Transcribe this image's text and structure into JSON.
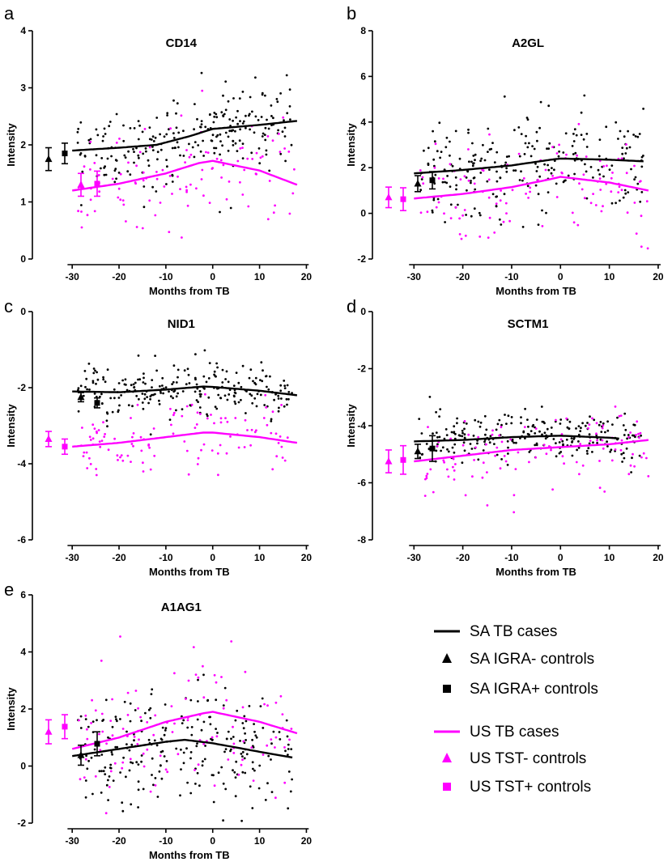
{
  "colors": {
    "sa": "#000000",
    "us": "#ff00ff"
  },
  "legend": {
    "items": [
      {
        "label": "SA TB cases",
        "marker": "line",
        "group": "sa"
      },
      {
        "label": "SA IGRA- controls",
        "marker": "triangle",
        "group": "sa"
      },
      {
        "label": "SA IGRA+ controls",
        "marker": "square",
        "group": "sa"
      },
      {
        "label": "US TB cases",
        "marker": "line",
        "group": "us"
      },
      {
        "label": "US TST- controls",
        "marker": "triangle",
        "group": "us"
      },
      {
        "label": "US TST+ controls",
        "marker": "square",
        "group": "us"
      }
    ]
  },
  "chart_data": [
    {
      "type": "scatter",
      "letter": "a",
      "title": "CD14",
      "xlabel": "Months from TB",
      "ylabel": "Intensity",
      "xlim": [
        -30,
        20
      ],
      "ylim": [
        0,
        4
      ],
      "xticks": [
        -30,
        -20,
        -10,
        0,
        10,
        20
      ],
      "yticks": [
        0,
        1,
        2,
        3,
        4
      ],
      "sa_center": 2.15,
      "sa_spread": 0.35,
      "us_center": 1.55,
      "us_spread": 0.45,
      "series": [
        {
          "name": "SA TB cases",
          "group": "sa",
          "type": "line",
          "x": [
            -30,
            -20,
            -12,
            -5,
            0,
            10,
            18
          ],
          "y": [
            1.9,
            1.95,
            2.0,
            2.15,
            2.28,
            2.35,
            2.42
          ]
        },
        {
          "name": "US TB cases",
          "group": "us",
          "type": "line",
          "x": [
            -30,
            -20,
            -10,
            -3,
            0,
            10,
            18
          ],
          "y": [
            1.2,
            1.32,
            1.5,
            1.68,
            1.72,
            1.55,
            1.3
          ]
        },
        {
          "name": "SA IGRA- controls",
          "group": "sa",
          "type": "errorbar",
          "marker": "triangle",
          "mean": 1.75,
          "err": 0.2
        },
        {
          "name": "SA IGRA+ controls",
          "group": "sa",
          "type": "errorbar",
          "marker": "square",
          "mean": 1.85,
          "err": 0.18
        },
        {
          "name": "US TST- controls",
          "group": "us",
          "type": "errorbar",
          "marker": "triangle",
          "mean": 1.3,
          "err": 0.2
        },
        {
          "name": "US TST+ controls",
          "group": "us",
          "type": "errorbar",
          "marker": "square",
          "mean": 1.32,
          "err": 0.22
        }
      ]
    },
    {
      "type": "scatter",
      "letter": "b",
      "title": "A2GL",
      "xlabel": "Months from TB",
      "ylabel": "Intensity",
      "xlim": [
        -30,
        20
      ],
      "ylim": [
        -2,
        8
      ],
      "xticks": [
        -30,
        -20,
        -10,
        0,
        10,
        20
      ],
      "yticks": [
        -2,
        0,
        2,
        4,
        6,
        8
      ],
      "sa_center": 2.0,
      "sa_spread": 1.1,
      "us_center": 1.2,
      "us_spread": 1.2,
      "series": [
        {
          "name": "SA TB cases",
          "group": "sa",
          "type": "line",
          "x": [
            -30,
            -20,
            -10,
            -2,
            0,
            10,
            17
          ],
          "y": [
            1.75,
            1.9,
            2.1,
            2.35,
            2.4,
            2.35,
            2.28
          ]
        },
        {
          "name": "US TB cases",
          "group": "us",
          "type": "line",
          "x": [
            -30,
            -20,
            -10,
            -2,
            0,
            10,
            18
          ],
          "y": [
            0.65,
            0.85,
            1.15,
            1.5,
            1.6,
            1.35,
            1.0
          ]
        },
        {
          "name": "SA IGRA- controls",
          "group": "sa",
          "type": "errorbar",
          "marker": "triangle",
          "mean": 1.3,
          "err": 0.35
        },
        {
          "name": "SA IGRA+ controls",
          "group": "sa",
          "type": "errorbar",
          "marker": "square",
          "mean": 1.45,
          "err": 0.38
        },
        {
          "name": "US TST- controls",
          "group": "us",
          "type": "errorbar",
          "marker": "triangle",
          "mean": 0.7,
          "err": 0.45
        },
        {
          "name": "US TST+ controls",
          "group": "us",
          "type": "errorbar",
          "marker": "square",
          "mean": 0.62,
          "err": 0.5
        }
      ]
    },
    {
      "type": "scatter",
      "letter": "c",
      "title": "NID1",
      "xlabel": "Months from TB",
      "ylabel": "Intensity",
      "xlim": [
        -30,
        20
      ],
      "ylim": [
        -6,
        0
      ],
      "xticks": [
        -30,
        -20,
        -10,
        0,
        10,
        20
      ],
      "yticks": [
        -6,
        -4,
        -2,
        0
      ],
      "sa_center": -2.1,
      "sa_spread": 0.3,
      "us_center": -3.4,
      "us_spread": 0.5,
      "series": [
        {
          "name": "SA TB cases",
          "group": "sa",
          "type": "line",
          "x": [
            -30,
            -20,
            -10,
            -2,
            0,
            10,
            18
          ],
          "y": [
            -2.1,
            -2.12,
            -2.05,
            -1.97,
            -1.98,
            -2.08,
            -2.2
          ]
        },
        {
          "name": "US TB cases",
          "group": "us",
          "type": "line",
          "x": [
            -30,
            -20,
            -10,
            -2,
            0,
            10,
            18
          ],
          "y": [
            -3.55,
            -3.45,
            -3.3,
            -3.18,
            -3.18,
            -3.3,
            -3.45
          ]
        },
        {
          "name": "SA IGRA- controls",
          "group": "sa",
          "type": "errorbar",
          "marker": "triangle",
          "mean": -2.25,
          "err": 0.12
        },
        {
          "name": "SA IGRA+ controls",
          "group": "sa",
          "type": "errorbar",
          "marker": "square",
          "mean": -2.4,
          "err": 0.13
        },
        {
          "name": "US TST- controls",
          "group": "us",
          "type": "errorbar",
          "marker": "triangle",
          "mean": -3.35,
          "err": 0.2
        },
        {
          "name": "US TST+ controls",
          "group": "us",
          "type": "errorbar",
          "marker": "square",
          "mean": -3.55,
          "err": 0.2
        }
      ]
    },
    {
      "type": "scatter",
      "letter": "d",
      "title": "SCTM1",
      "xlabel": "Months from TB",
      "ylabel": "Intensity",
      "xlim": [
        -30,
        20
      ],
      "ylim": [
        -8,
        0
      ],
      "xticks": [
        -30,
        -20,
        -10,
        0,
        10,
        20
      ],
      "yticks": [
        -8,
        -6,
        -4,
        -2,
        0
      ],
      "sa_center": -4.5,
      "sa_spread": 0.45,
      "us_center": -4.8,
      "us_spread": 0.7,
      "series": [
        {
          "name": "SA TB cases",
          "group": "sa",
          "type": "line",
          "x": [
            -30,
            -20,
            -10,
            0,
            10,
            12
          ],
          "y": [
            -4.55,
            -4.5,
            -4.4,
            -4.35,
            -4.42,
            -4.45
          ]
        },
        {
          "name": "US TB cases",
          "group": "us",
          "type": "line",
          "x": [
            -30,
            -20,
            -10,
            0,
            10,
            18
          ],
          "y": [
            -5.25,
            -5.05,
            -4.85,
            -4.75,
            -4.65,
            -4.5
          ]
        },
        {
          "name": "SA IGRA- controls",
          "group": "sa",
          "type": "errorbar",
          "marker": "triangle",
          "mean": -4.9,
          "err": 0.25
        },
        {
          "name": "SA IGRA+ controls",
          "group": "sa",
          "type": "errorbar",
          "marker": "square",
          "mean": -4.8,
          "err": 0.45
        },
        {
          "name": "US TST- controls",
          "group": "us",
          "type": "errorbar",
          "marker": "triangle",
          "mean": -5.25,
          "err": 0.4
        },
        {
          "name": "US TST+ controls",
          "group": "us",
          "type": "errorbar",
          "marker": "square",
          "mean": -5.2,
          "err": 0.5
        }
      ]
    },
    {
      "type": "scatter",
      "letter": "e",
      "title": "A1AG1",
      "xlabel": "Months from TB",
      "ylabel": "Intensity",
      "xlim": [
        -30,
        20
      ],
      "ylim": [
        -2,
        6
      ],
      "xticks": [
        -30,
        -20,
        -10,
        0,
        10,
        20
      ],
      "yticks": [
        -2,
        0,
        2,
        4,
        6
      ],
      "sa_center": 0.7,
      "sa_spread": 0.95,
      "us_center": 1.5,
      "us_spread": 1.1,
      "series": [
        {
          "name": "SA TB cases",
          "group": "sa",
          "type": "line",
          "x": [
            -30,
            -20,
            -10,
            -6,
            0,
            10,
            17
          ],
          "y": [
            0.35,
            0.6,
            0.85,
            0.92,
            0.8,
            0.5,
            0.3
          ]
        },
        {
          "name": "US TB cases",
          "group": "us",
          "type": "line",
          "x": [
            -30,
            -20,
            -10,
            -2,
            0,
            10,
            18
          ],
          "y": [
            0.6,
            1.0,
            1.55,
            1.85,
            1.9,
            1.55,
            1.15
          ]
        },
        {
          "name": "SA IGRA- controls",
          "group": "sa",
          "type": "errorbar",
          "marker": "triangle",
          "mean": 0.38,
          "err": 0.35
        },
        {
          "name": "SA IGRA+ controls",
          "group": "sa",
          "type": "errorbar",
          "marker": "square",
          "mean": 0.78,
          "err": 0.42
        },
        {
          "name": "US TST- controls",
          "group": "us",
          "type": "errorbar",
          "marker": "triangle",
          "mean": 1.2,
          "err": 0.42
        },
        {
          "name": "US TST+ controls",
          "group": "us",
          "type": "errorbar",
          "marker": "square",
          "mean": 1.38,
          "err": 0.42
        }
      ]
    }
  ]
}
